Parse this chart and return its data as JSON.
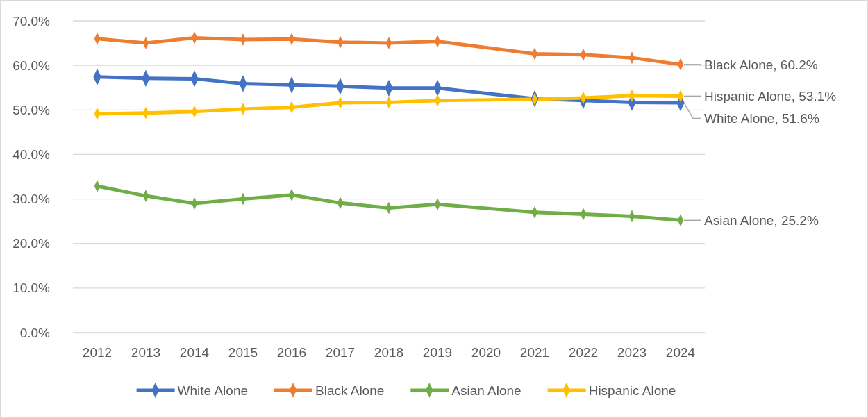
{
  "chart_data": {
    "type": "line",
    "categories": [
      "2012",
      "2013",
      "2014",
      "2015",
      "2016",
      "2017",
      "2018",
      "2019",
      "2020",
      "2021",
      "2022",
      "2023",
      "2024"
    ],
    "series": [
      {
        "name": "White Alone",
        "color": "#4472c4",
        "values": [
          57.4,
          57.1,
          57.0,
          55.9,
          55.6,
          55.3,
          54.9,
          54.9,
          null,
          52.5,
          52.1,
          51.7,
          51.6
        ],
        "value_labels": [
          null,
          null,
          null,
          null,
          null,
          null,
          null,
          null,
          null,
          null,
          null,
          null,
          "White Alone, 51.6%"
        ]
      },
      {
        "name": "Black Alone",
        "color": "#ed7d31",
        "values": [
          66.0,
          65.0,
          66.2,
          65.8,
          65.9,
          65.2,
          65.0,
          65.4,
          null,
          62.6,
          62.4,
          61.7,
          60.2
        ],
        "value_labels": [
          null,
          null,
          null,
          null,
          null,
          null,
          null,
          null,
          null,
          null,
          null,
          null,
          "Black Alone, 60.2%"
        ]
      },
      {
        "name": "Asian Alone",
        "color": "#70ad47",
        "values": [
          32.9,
          30.7,
          29.0,
          30.0,
          30.9,
          29.1,
          28.0,
          28.8,
          null,
          27.0,
          26.6,
          26.1,
          25.2
        ],
        "value_labels": [
          null,
          null,
          null,
          null,
          null,
          null,
          null,
          null,
          null,
          null,
          null,
          null,
          "Asian Alone, 25.2%"
        ]
      },
      {
        "name": "Hispanic Alone",
        "color": "#ffc000",
        "values": [
          49.1,
          49.3,
          49.6,
          50.2,
          50.6,
          51.6,
          51.7,
          52.1,
          null,
          52.4,
          52.7,
          53.2,
          53.1
        ],
        "value_labels": [
          null,
          null,
          null,
          null,
          null,
          null,
          null,
          null,
          null,
          null,
          null,
          null,
          "Hispanic Alone, 53.1%"
        ]
      }
    ],
    "ylim": [
      0,
      70
    ],
    "yticks": [
      {
        "value": 0,
        "label": "0.0%"
      },
      {
        "value": 10,
        "label": "10.0%"
      },
      {
        "value": 20,
        "label": "20.0%"
      },
      {
        "value": 30,
        "label": "30.0%"
      },
      {
        "value": 40,
        "label": "40.0%"
      },
      {
        "value": 50,
        "label": "50.0%"
      },
      {
        "value": 60,
        "label": "60.0%"
      },
      {
        "value": 70,
        "label": "70.0%"
      }
    ],
    "grid": "y",
    "legend": "bottom",
    "marker": "diamond",
    "line_style": "solid"
  }
}
